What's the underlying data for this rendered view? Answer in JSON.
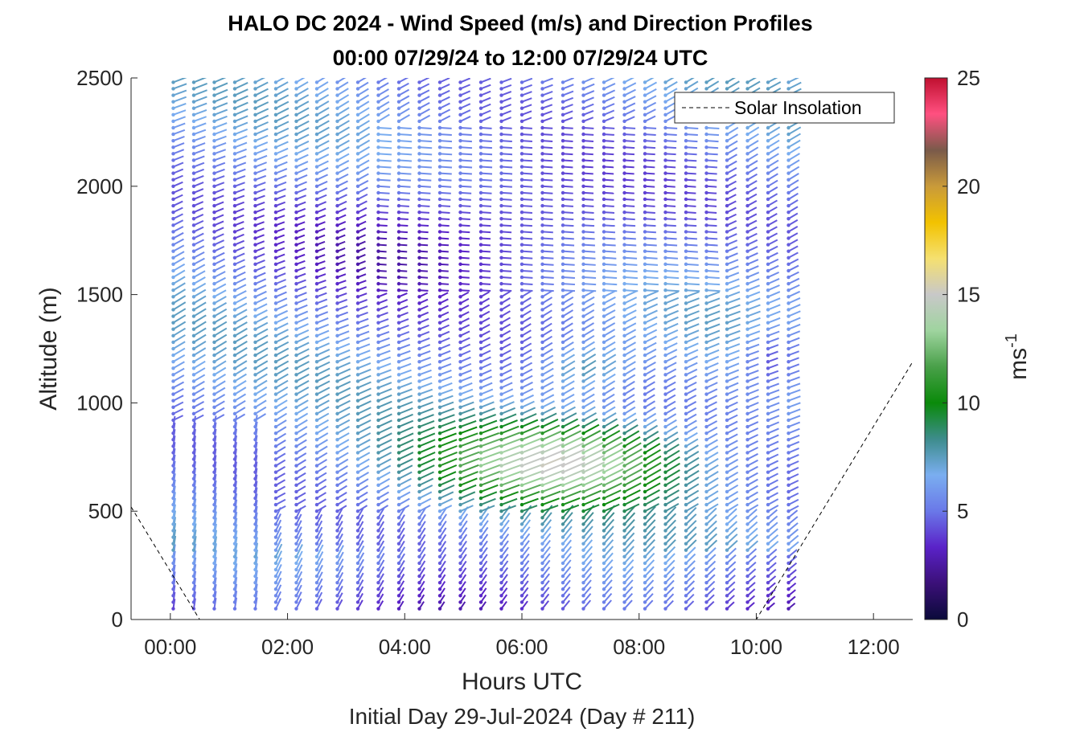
{
  "chart_data": {
    "type": "quiver",
    "title": "HALO DC 2024 - Wind Speed (m/s) and Direction Profiles",
    "subtitle": "00:00 07/29/24 to 12:00 07/29/24  UTC",
    "xlabel": "Hours UTC",
    "xsublabel": "Initial Day 29-Jul-2024 (Day # 211)",
    "ylabel": "Altitude (m)",
    "xlim": [
      -0.67,
      12.67
    ],
    "ylim": [
      0,
      2500
    ],
    "x_ticks": [
      0,
      2,
      4,
      6,
      8,
      10,
      12
    ],
    "x_tick_labels": [
      "00:00",
      "02:00",
      "04:00",
      "06:00",
      "08:00",
      "10:00",
      "12:00"
    ],
    "y_ticks": [
      0,
      500,
      1000,
      1500,
      2000,
      2500
    ],
    "y_tick_labels": [
      "0",
      "500",
      "1000",
      "1500",
      "2000",
      "2500"
    ],
    "colorbar": {
      "label": "ms",
      "label_superscript": "-1",
      "range": [
        0,
        25
      ],
      "ticks": [
        0,
        5,
        10,
        15,
        20,
        25
      ],
      "tick_labels": [
        "0",
        "5",
        "10",
        "15",
        "20",
        "25"
      ]
    },
    "legend": {
      "entries": [
        "Solar Insolation"
      ],
      "placement": "top-right",
      "line_style": "dashed"
    },
    "profile_times_hours": [
      0.05,
      0.4,
      0.75,
      1.1,
      1.45,
      1.8,
      2.15,
      2.5,
      2.85,
      3.2,
      3.55,
      3.9,
      4.25,
      4.6,
      4.95,
      5.3,
      5.65,
      6.0,
      6.35,
      6.7,
      7.05,
      7.4,
      7.75,
      8.1,
      8.45,
      8.8,
      9.15,
      9.5,
      9.85,
      10.2,
      10.55
    ],
    "altitude_range_m": [
      50,
      2500
    ],
    "altitude_step_m": 30,
    "solar_insolation": {
      "x": [
        -0.67,
        0.5,
        0.5,
        10.0,
        10.0,
        12.67
      ],
      "y": [
        520,
        0,
        0,
        0,
        0,
        1190
      ]
    },
    "notes": "Each profile shows wind barbs/arrows colored by wind speed; low-level winds (<500 m) mostly 5-8 m/s from south, a jet of ~13-15 m/s between 500-1000 m from about 04:00 to 08:30 UTC, weak (2-4 m/s) winds near 1600-2300 m."
  },
  "colors": {
    "colormap_stops": [
      "#0a0a3a",
      "#3b1078",
      "#5a22c8",
      "#6a78e8",
      "#7aaef0",
      "#3d8c8c",
      "#0a8a0a",
      "#49a049",
      "#9fd49f",
      "#c8c8c8",
      "#f5e070",
      "#f2c200",
      "#c99a3a",
      "#7a5a4a",
      "#ff5080",
      "#c01030"
    ],
    "axis": "#262626",
    "solar_line": "#000000"
  }
}
